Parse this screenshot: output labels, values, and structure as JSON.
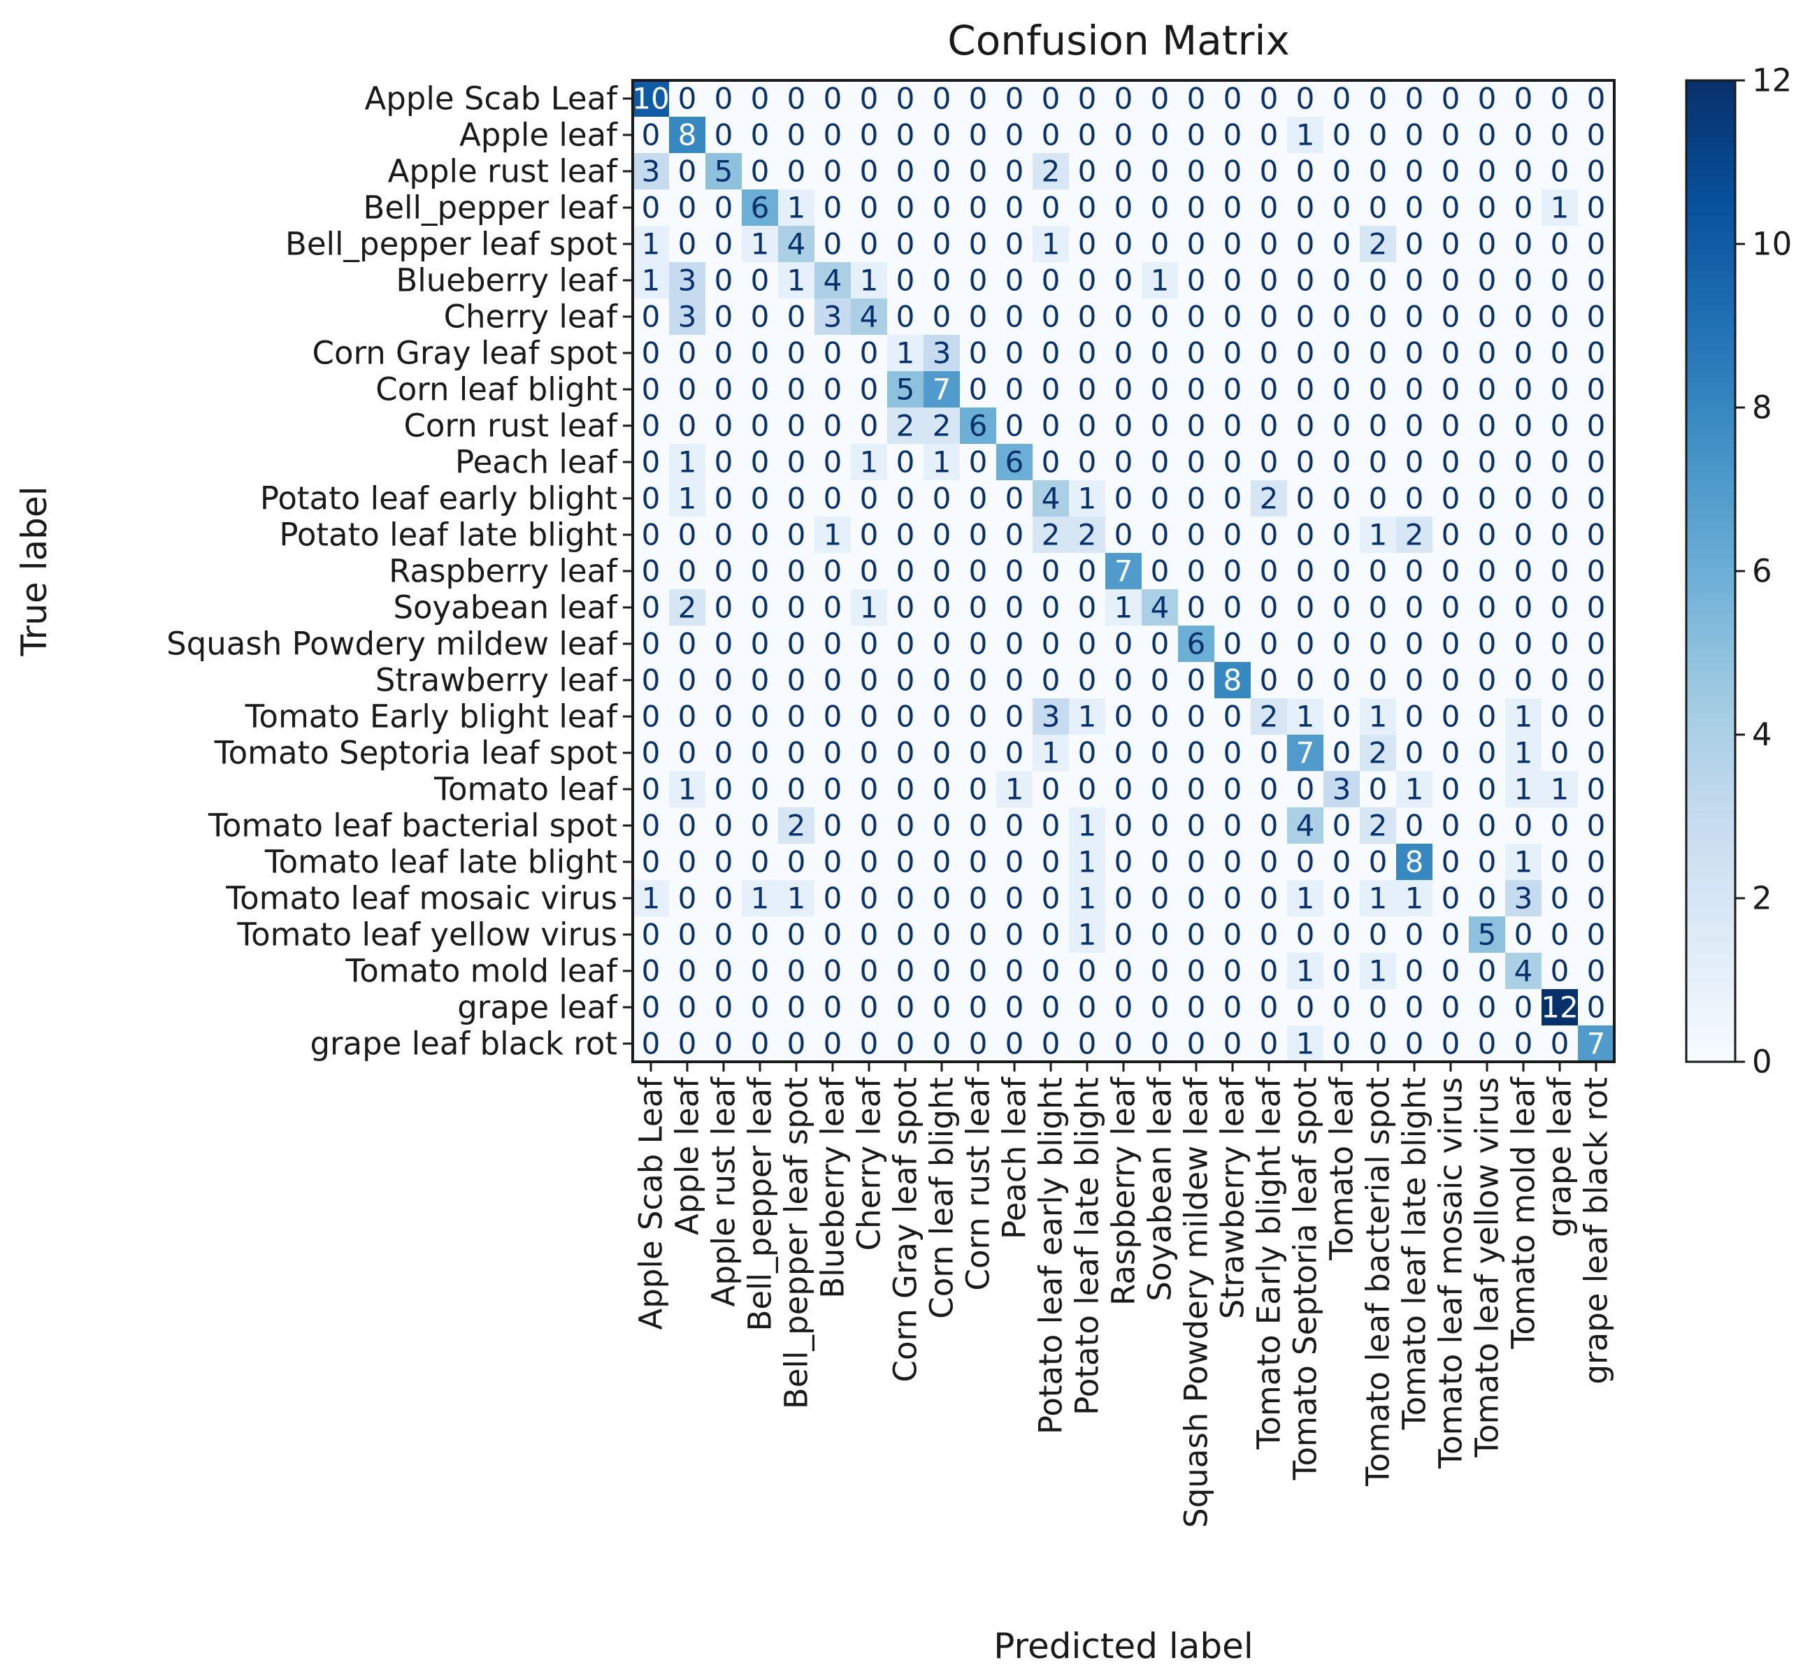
{
  "chart_data": {
    "type": "heatmap",
    "title": "Confusion Matrix",
    "xlabel": "Predicted label",
    "ylabel": "True label",
    "colormap": "Blues",
    "colormap_stops": [
      "#f7fbff",
      "#deebf7",
      "#c6dbef",
      "#9ecae1",
      "#6baed6",
      "#4292c6",
      "#2171b5",
      "#08519c",
      "#08306b"
    ],
    "text_color_dark": "#08306b",
    "text_color_light": "#f7fbff",
    "vmin": 0,
    "vmax": 12,
    "colorbar_ticks": [
      0,
      2,
      4,
      6,
      8,
      10,
      12
    ],
    "labels": [
      "Apple Scab Leaf",
      "Apple leaf",
      "Apple rust leaf",
      "Bell_pepper leaf",
      "Bell_pepper leaf spot",
      "Blueberry leaf",
      "Cherry leaf",
      "Corn Gray leaf spot",
      "Corn leaf blight",
      "Corn rust leaf",
      "Peach leaf",
      "Potato leaf early blight",
      "Potato leaf late blight",
      "Raspberry leaf",
      "Soyabean leaf",
      "Squash Powdery mildew leaf",
      "Strawberry leaf",
      "Tomato Early blight leaf",
      "Tomato Septoria leaf spot",
      "Tomato leaf",
      "Tomato leaf bacterial spot",
      "Tomato leaf late blight",
      "Tomato leaf mosaic virus",
      "Tomato leaf yellow virus",
      "Tomato mold leaf",
      "grape leaf",
      "grape leaf black rot"
    ],
    "matrix": [
      [
        10,
        0,
        0,
        0,
        0,
        0,
        0,
        0,
        0,
        0,
        0,
        0,
        0,
        0,
        0,
        0,
        0,
        0,
        0,
        0,
        0,
        0,
        0,
        0,
        0,
        0,
        0
      ],
      [
        0,
        8,
        0,
        0,
        0,
        0,
        0,
        0,
        0,
        0,
        0,
        0,
        0,
        0,
        0,
        0,
        0,
        0,
        1,
        0,
        0,
        0,
        0,
        0,
        0,
        0,
        0
      ],
      [
        3,
        0,
        5,
        0,
        0,
        0,
        0,
        0,
        0,
        0,
        0,
        2,
        0,
        0,
        0,
        0,
        0,
        0,
        0,
        0,
        0,
        0,
        0,
        0,
        0,
        0,
        0
      ],
      [
        0,
        0,
        0,
        6,
        1,
        0,
        0,
        0,
        0,
        0,
        0,
        0,
        0,
        0,
        0,
        0,
        0,
        0,
        0,
        0,
        0,
        0,
        0,
        0,
        0,
        1,
        0
      ],
      [
        1,
        0,
        0,
        1,
        4,
        0,
        0,
        0,
        0,
        0,
        0,
        1,
        0,
        0,
        0,
        0,
        0,
        0,
        0,
        0,
        2,
        0,
        0,
        0,
        0,
        0,
        0
      ],
      [
        1,
        3,
        0,
        0,
        1,
        4,
        1,
        0,
        0,
        0,
        0,
        0,
        0,
        0,
        1,
        0,
        0,
        0,
        0,
        0,
        0,
        0,
        0,
        0,
        0,
        0,
        0
      ],
      [
        0,
        3,
        0,
        0,
        0,
        3,
        4,
        0,
        0,
        0,
        0,
        0,
        0,
        0,
        0,
        0,
        0,
        0,
        0,
        0,
        0,
        0,
        0,
        0,
        0,
        0,
        0
      ],
      [
        0,
        0,
        0,
        0,
        0,
        0,
        0,
        1,
        3,
        0,
        0,
        0,
        0,
        0,
        0,
        0,
        0,
        0,
        0,
        0,
        0,
        0,
        0,
        0,
        0,
        0,
        0
      ],
      [
        0,
        0,
        0,
        0,
        0,
        0,
        0,
        5,
        7,
        0,
        0,
        0,
        0,
        0,
        0,
        0,
        0,
        0,
        0,
        0,
        0,
        0,
        0,
        0,
        0,
        0,
        0
      ],
      [
        0,
        0,
        0,
        0,
        0,
        0,
        0,
        2,
        2,
        6,
        0,
        0,
        0,
        0,
        0,
        0,
        0,
        0,
        0,
        0,
        0,
        0,
        0,
        0,
        0,
        0,
        0
      ],
      [
        0,
        1,
        0,
        0,
        0,
        0,
        1,
        0,
        1,
        0,
        6,
        0,
        0,
        0,
        0,
        0,
        0,
        0,
        0,
        0,
        0,
        0,
        0,
        0,
        0,
        0,
        0
      ],
      [
        0,
        1,
        0,
        0,
        0,
        0,
        0,
        0,
        0,
        0,
        0,
        4,
        1,
        0,
        0,
        0,
        0,
        2,
        0,
        0,
        0,
        0,
        0,
        0,
        0,
        0,
        0
      ],
      [
        0,
        0,
        0,
        0,
        0,
        1,
        0,
        0,
        0,
        0,
        0,
        2,
        2,
        0,
        0,
        0,
        0,
        0,
        0,
        0,
        1,
        2,
        0,
        0,
        0,
        0,
        0
      ],
      [
        0,
        0,
        0,
        0,
        0,
        0,
        0,
        0,
        0,
        0,
        0,
        0,
        0,
        7,
        0,
        0,
        0,
        0,
        0,
        0,
        0,
        0,
        0,
        0,
        0,
        0,
        0
      ],
      [
        0,
        2,
        0,
        0,
        0,
        0,
        1,
        0,
        0,
        0,
        0,
        0,
        0,
        1,
        4,
        0,
        0,
        0,
        0,
        0,
        0,
        0,
        0,
        0,
        0,
        0,
        0
      ],
      [
        0,
        0,
        0,
        0,
        0,
        0,
        0,
        0,
        0,
        0,
        0,
        0,
        0,
        0,
        0,
        6,
        0,
        0,
        0,
        0,
        0,
        0,
        0,
        0,
        0,
        0,
        0
      ],
      [
        0,
        0,
        0,
        0,
        0,
        0,
        0,
        0,
        0,
        0,
        0,
        0,
        0,
        0,
        0,
        0,
        8,
        0,
        0,
        0,
        0,
        0,
        0,
        0,
        0,
        0,
        0
      ],
      [
        0,
        0,
        0,
        0,
        0,
        0,
        0,
        0,
        0,
        0,
        0,
        3,
        1,
        0,
        0,
        0,
        0,
        2,
        1,
        0,
        1,
        0,
        0,
        0,
        1,
        0,
        0
      ],
      [
        0,
        0,
        0,
        0,
        0,
        0,
        0,
        0,
        0,
        0,
        0,
        1,
        0,
        0,
        0,
        0,
        0,
        0,
        7,
        0,
        2,
        0,
        0,
        0,
        1,
        0,
        0
      ],
      [
        0,
        1,
        0,
        0,
        0,
        0,
        0,
        0,
        0,
        0,
        1,
        0,
        0,
        0,
        0,
        0,
        0,
        0,
        0,
        3,
        0,
        1,
        0,
        0,
        1,
        1,
        0
      ],
      [
        0,
        0,
        0,
        0,
        2,
        0,
        0,
        0,
        0,
        0,
        0,
        0,
        1,
        0,
        0,
        0,
        0,
        0,
        4,
        0,
        2,
        0,
        0,
        0,
        0,
        0,
        0
      ],
      [
        0,
        0,
        0,
        0,
        0,
        0,
        0,
        0,
        0,
        0,
        0,
        0,
        1,
        0,
        0,
        0,
        0,
        0,
        0,
        0,
        0,
        8,
        0,
        0,
        1,
        0,
        0
      ],
      [
        1,
        0,
        0,
        1,
        1,
        0,
        0,
        0,
        0,
        0,
        0,
        0,
        1,
        0,
        0,
        0,
        0,
        0,
        1,
        0,
        1,
        1,
        0,
        0,
        3,
        0,
        0
      ],
      [
        0,
        0,
        0,
        0,
        0,
        0,
        0,
        0,
        0,
        0,
        0,
        0,
        1,
        0,
        0,
        0,
        0,
        0,
        0,
        0,
        0,
        0,
        0,
        5,
        0,
        0,
        0
      ],
      [
        0,
        0,
        0,
        0,
        0,
        0,
        0,
        0,
        0,
        0,
        0,
        0,
        0,
        0,
        0,
        0,
        0,
        0,
        1,
        0,
        1,
        0,
        0,
        0,
        4,
        0,
        0
      ],
      [
        0,
        0,
        0,
        0,
        0,
        0,
        0,
        0,
        0,
        0,
        0,
        0,
        0,
        0,
        0,
        0,
        0,
        0,
        0,
        0,
        0,
        0,
        0,
        0,
        0,
        12,
        0
      ],
      [
        0,
        0,
        0,
        0,
        0,
        0,
        0,
        0,
        0,
        0,
        0,
        0,
        0,
        0,
        0,
        0,
        0,
        0,
        1,
        0,
        0,
        0,
        0,
        0,
        0,
        0,
        7
      ]
    ]
  }
}
